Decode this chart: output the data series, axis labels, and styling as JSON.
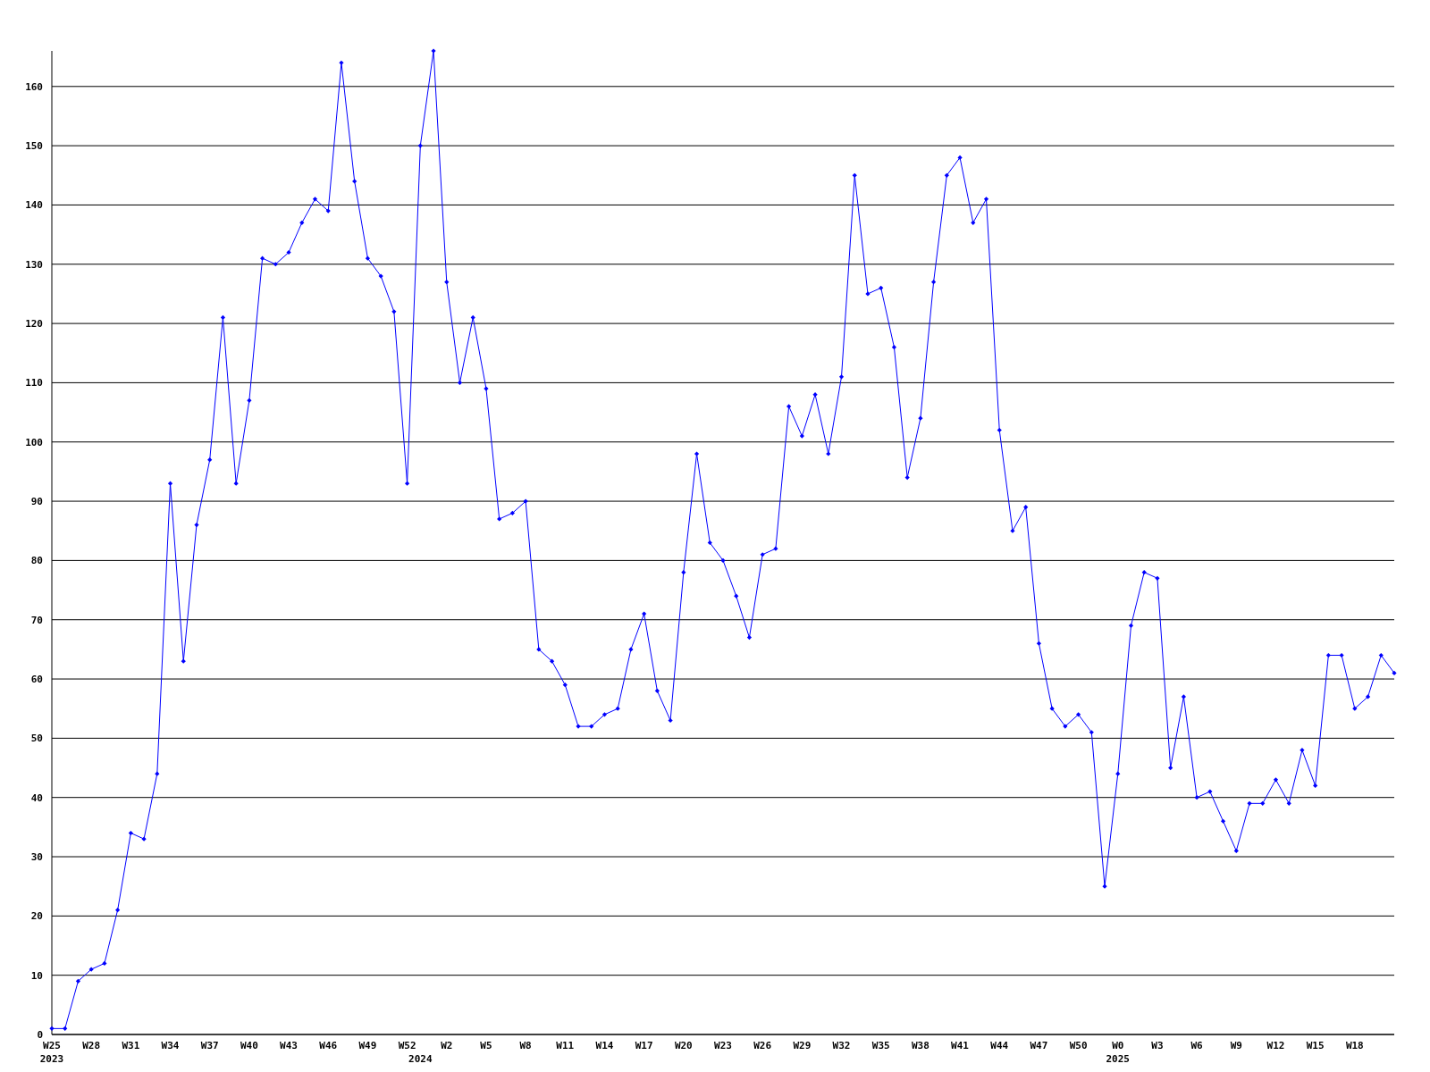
{
  "chart_data": {
    "type": "line",
    "categories": [
      "W25\n2023",
      null,
      null,
      "W28",
      null,
      null,
      "W31",
      null,
      null,
      "W34",
      null,
      null,
      "W37",
      null,
      null,
      "W40",
      null,
      null,
      "W43",
      null,
      null,
      "W46",
      null,
      null,
      "W49",
      null,
      null,
      "W52",
      "\n2024",
      null,
      "W2",
      null,
      null,
      "W5",
      null,
      null,
      "W8",
      null,
      null,
      "W11",
      null,
      null,
      "W14",
      null,
      null,
      "W17",
      null,
      null,
      "W20",
      null,
      null,
      "W23",
      null,
      null,
      "W26",
      null,
      null,
      "W29",
      null,
      null,
      "W32",
      null,
      null,
      "W35",
      null,
      null,
      "W38",
      null,
      null,
      "W41",
      null,
      null,
      "W44",
      null,
      null,
      "W47",
      null,
      null,
      "W50",
      null,
      null,
      "W0\n2025",
      null,
      null,
      "W3",
      null,
      null,
      "W6",
      null,
      null,
      "W9",
      null,
      null,
      "W12",
      null,
      null,
      "W15",
      null,
      null,
      "W18",
      null,
      null,
      null
    ],
    "series": [
      {
        "color": "#0000ff",
        "values": [
          1,
          1,
          9,
          11,
          12,
          21,
          34,
          33,
          44,
          93,
          63,
          86,
          97,
          121,
          93,
          107,
          131,
          130,
          132,
          137,
          141,
          139,
          164,
          144,
          131,
          128,
          122,
          93,
          150,
          166,
          127,
          110,
          121,
          109,
          87,
          88,
          90,
          65,
          63,
          59,
          52,
          52,
          54,
          55,
          65,
          71,
          58,
          53,
          78,
          98,
          83,
          80,
          74,
          67,
          81,
          82,
          106,
          101,
          108,
          98,
          111,
          145,
          125,
          126,
          116,
          94,
          104,
          127,
          145,
          148,
          137,
          141,
          102,
          85,
          89,
          66,
          55,
          52,
          54,
          51,
          25,
          44,
          69,
          78,
          77,
          45,
          57,
          40,
          41,
          36,
          31,
          39,
          39,
          43,
          39,
          48,
          42,
          64,
          64,
          55,
          57,
          64,
          61
        ]
      }
    ],
    "ylim": [
      0,
      166
    ],
    "yticks": [
      0,
      10,
      20,
      30,
      40,
      50,
      60,
      70,
      80,
      90,
      100,
      110,
      120,
      130,
      140,
      150,
      160
    ],
    "grid": "y",
    "marker": "diamond",
    "line_style": "solid"
  }
}
